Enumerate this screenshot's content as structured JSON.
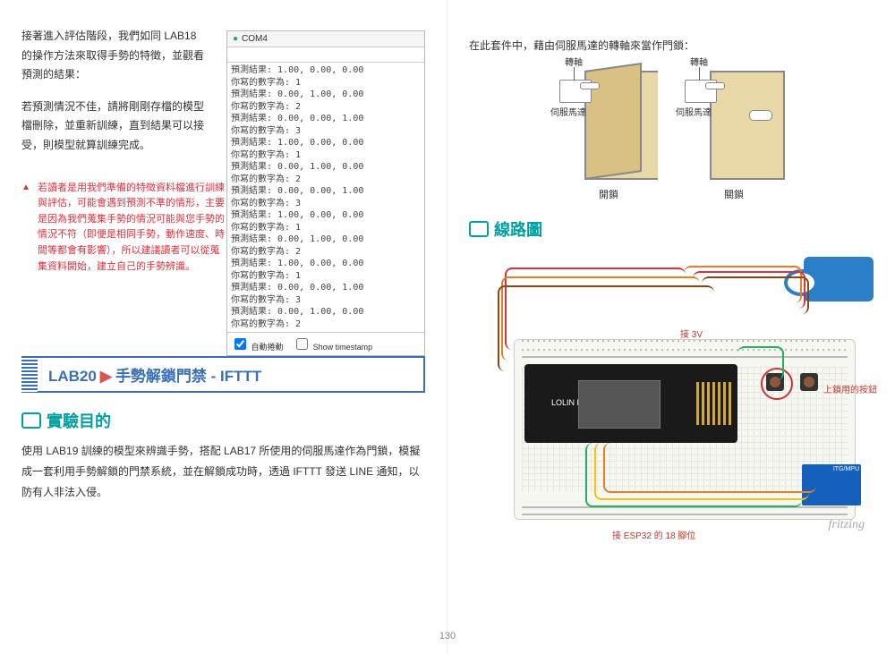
{
  "left": {
    "p1": "接著進入評估階段，我們如同 LAB18 的操作方法來取得手勢的特徵，並觀看預測的結果：",
    "p2": "若預測情況不佳，請將剛剛存檔的模型檔刪除，並重新訓練，直到結果可以接受，則模型就算訓練完成。",
    "warn": "若讀者是用我們準備的特徵資料檔進行訓練與評估，可能會遇到預測不準的情形，主要是因為我們蒐集手勢的情況可能與您手勢的情況不符（即便是相同手勢，動作速度、時間等都會有影響），所以建議讀者可以從蒐集資料開始，建立自己的手勢辨識。",
    "lab_a": "LAB20",
    "lab_b": "手勢解鎖門禁 - IFTTT",
    "s1": "實驗目的",
    "body": "使用 LAB19 訓練的模型來辨識手勢，搭配 LAB17 所使用的伺服馬達作為門鎖，模擬成一套利用手勢解鎖的門禁系統，並在解鎖成功時，透過 IFTTT 發送 LINE 通知，以防有人非法入侵。"
  },
  "console": {
    "title": "COM4",
    "lines": [
      "預測結果: 1.00, 0.00, 0.00",
      "你寫的數字為: 1",
      "預測結果: 0.00, 1.00, 0.00",
      "你寫的數字為: 2",
      "預測結果: 0.00, 0.00, 1.00",
      "你寫的數字為: 3",
      "預測結果: 1.00, 0.00, 0.00",
      "你寫的數字為: 1",
      "預測結果: 0.00, 1.00, 0.00",
      "你寫的數字為: 2",
      "預測結果: 0.00, 0.00, 1.00",
      "你寫的數字為: 3",
      "預測結果: 1.00, 0.00, 0.00",
      "你寫的數字為: 1",
      "預測結果: 0.00, 1.00, 0.00",
      "你寫的數字為: 2",
      "預測結果: 1.00, 0.00, 0.00",
      "你寫的數字為: 1",
      "預測結果: 0.00, 0.00, 1.00",
      "你寫的數字為: 3",
      "預測結果: 0.00, 1.00, 0.00",
      "你寫的數字為: 2"
    ],
    "cb1": "自動捲動",
    "cb2": "Show timestamp"
  },
  "right": {
    "top": "在此套件中，藉由伺服馬達的轉軸來當作門鎖：",
    "axis": "轉軸",
    "servo": "伺服馬達",
    "open": "開鎖",
    "close": "關鎖",
    "sec": "線路圖",
    "l1": "接 3V",
    "l2": "上鎖用的按鈕",
    "l3": "接 ESP32 的 18 腳位",
    "esp": "LOLIN D32",
    "mpu": "ITG/MPU",
    "fz": "fritzing"
  },
  "page": "130"
}
